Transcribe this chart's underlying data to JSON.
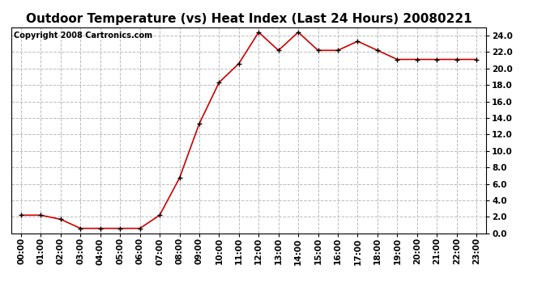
{
  "title": "Outdoor Temperature (vs) Heat Index (Last 24 Hours) 20080221",
  "copyright_text": "Copyright 2008 Cartronics.com",
  "x_labels": [
    "00:00",
    "01:00",
    "02:00",
    "03:00",
    "04:00",
    "05:00",
    "06:00",
    "07:00",
    "08:00",
    "09:00",
    "10:00",
    "11:00",
    "12:00",
    "13:00",
    "14:00",
    "15:00",
    "16:00",
    "17:00",
    "18:00",
    "19:00",
    "20:00",
    "21:00",
    "22:00",
    "23:00"
  ],
  "y_values": [
    2.2,
    2.2,
    1.7,
    0.6,
    0.6,
    0.6,
    0.6,
    2.2,
    6.7,
    13.3,
    18.3,
    20.6,
    24.4,
    22.2,
    24.4,
    22.2,
    22.2,
    23.3,
    22.2,
    21.1,
    21.1,
    21.1,
    21.1,
    21.1
  ],
  "line_color": "#cc0000",
  "marker": "+",
  "marker_size": 5,
  "marker_color": "#000000",
  "background_color": "#ffffff",
  "plot_bg_color": "#ffffff",
  "grid_color": "#bbbbbb",
  "grid_style": "--",
  "ylim": [
    0.0,
    25.0
  ],
  "yticks": [
    0.0,
    2.0,
    4.0,
    6.0,
    8.0,
    10.0,
    12.0,
    14.0,
    16.0,
    18.0,
    20.0,
    22.0,
    24.0
  ],
  "title_fontsize": 11,
  "tick_fontsize": 7.5,
  "copyright_fontsize": 7
}
